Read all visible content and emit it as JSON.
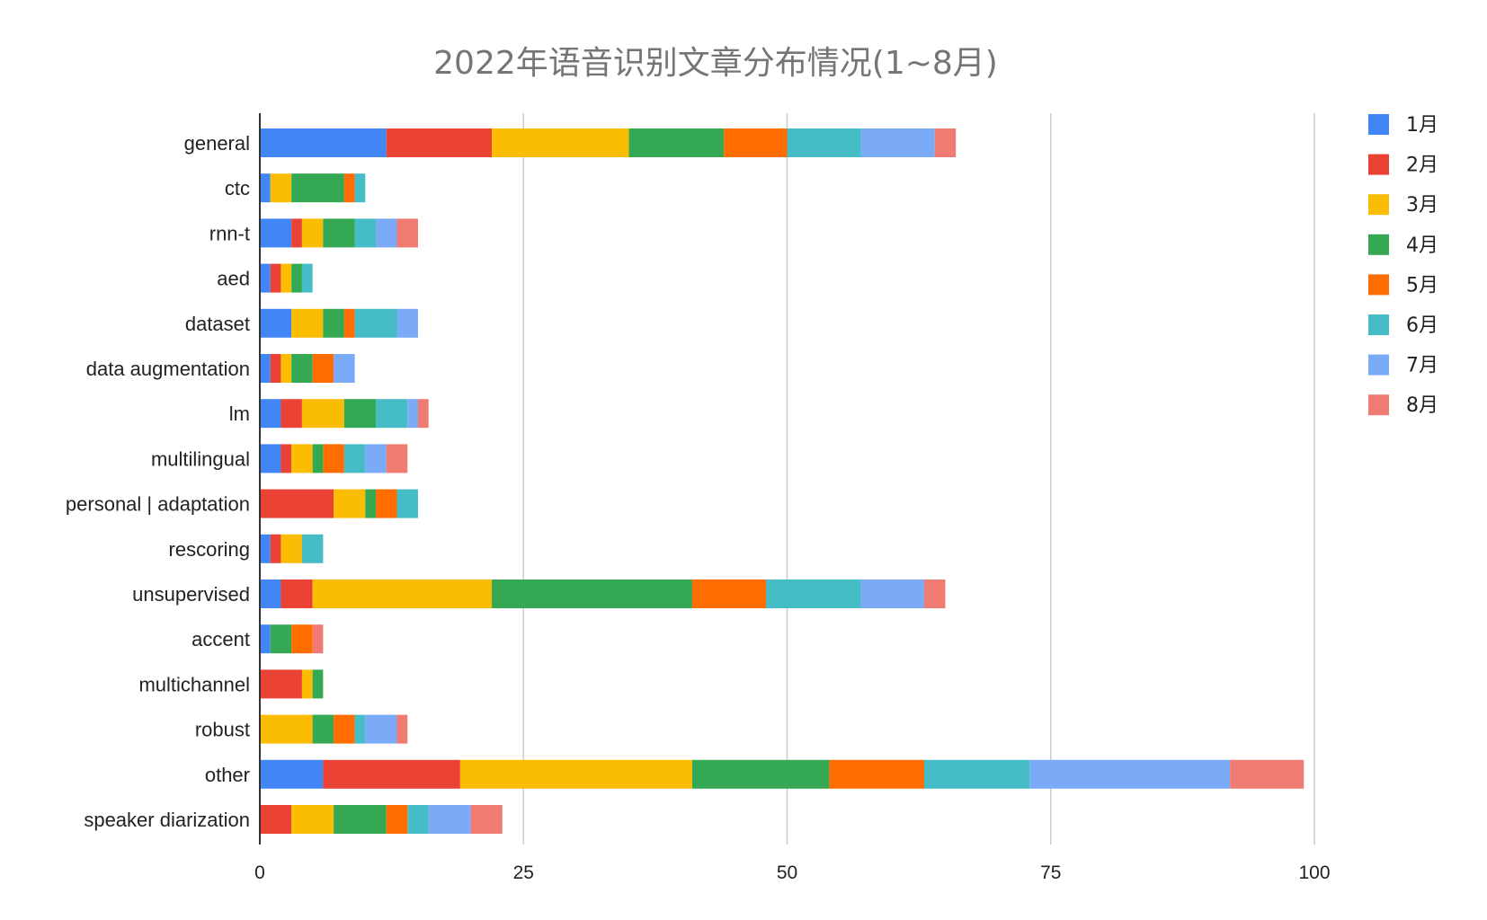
{
  "chart_data": {
    "type": "bar",
    "orientation": "horizontal",
    "stacked": true,
    "title": "2022年语音识别文章分布情况(1~8月)",
    "categories": [
      "general",
      "ctc",
      "rnn-t",
      "aed",
      "dataset",
      "data augmentation",
      "lm",
      "multilingual",
      "personal | adaptation",
      "rescoring",
      "unsupervised",
      "accent",
      "multichannel",
      "robust",
      "other",
      "speaker diarization"
    ],
    "series": [
      {
        "name": "1月",
        "color": "#4285f4",
        "values": [
          12,
          1,
          3,
          1,
          3,
          1,
          2,
          2,
          0,
          1,
          2,
          1,
          0,
          0,
          6,
          0
        ]
      },
      {
        "name": "2月",
        "color": "#ea4335",
        "values": [
          10,
          0,
          1,
          1,
          0,
          1,
          2,
          1,
          7,
          1,
          3,
          0,
          4,
          0,
          13,
          3
        ]
      },
      {
        "name": "3月",
        "color": "#fbbc04",
        "values": [
          13,
          2,
          2,
          1,
          3,
          1,
          4,
          2,
          3,
          2,
          17,
          0,
          1,
          5,
          22,
          4
        ]
      },
      {
        "name": "4月",
        "color": "#34a853",
        "values": [
          9,
          5,
          3,
          1,
          2,
          2,
          3,
          1,
          1,
          0,
          19,
          2,
          1,
          2,
          13,
          5
        ]
      },
      {
        "name": "5月",
        "color": "#ff6d01",
        "values": [
          6,
          1,
          0,
          0,
          1,
          2,
          0,
          2,
          2,
          0,
          7,
          2,
          0,
          2,
          9,
          2
        ]
      },
      {
        "name": "6月",
        "color": "#46bdc6",
        "values": [
          7,
          1,
          2,
          1,
          4,
          0,
          3,
          2,
          2,
          2,
          9,
          0,
          0,
          1,
          10,
          2
        ]
      },
      {
        "name": "7月",
        "color": "#7baaf7",
        "values": [
          7,
          0,
          2,
          0,
          2,
          2,
          1,
          2,
          0,
          0,
          6,
          0,
          0,
          3,
          19,
          4
        ]
      },
      {
        "name": "8月",
        "color": "#f07b72",
        "values": [
          2,
          0,
          2,
          0,
          0,
          0,
          1,
          2,
          0,
          0,
          2,
          1,
          0,
          1,
          7,
          3
        ]
      }
    ],
    "xlim": [
      0,
      100
    ],
    "xticks": [
      0,
      25,
      50,
      75,
      100
    ],
    "grid": true,
    "legend_position": "right"
  }
}
